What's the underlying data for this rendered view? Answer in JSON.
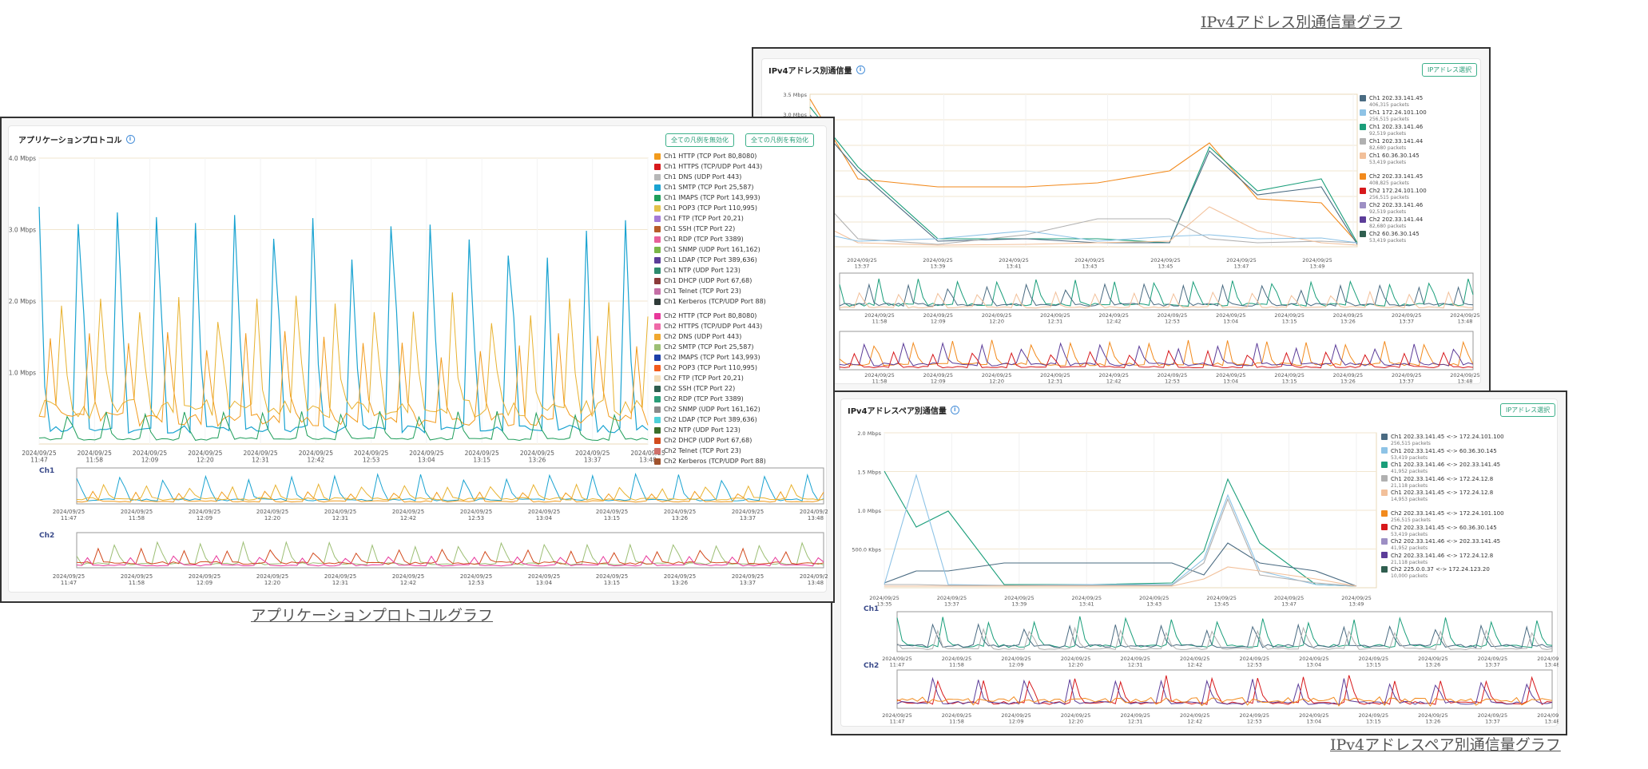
{
  "captions": {
    "app": "アプリケーションプロトコルグラフ",
    "ipv4": "IPv4アドレス別通信量グラフ",
    "pair": "IPv4アドレスペア別通信量グラフ"
  },
  "app_panel": {
    "title": "アプリケーションプロトコル",
    "btn_disable": "全ての凡例を無効化",
    "btn_enable": "全ての凡例を有効化",
    "y_ticks": [
      "4.0 Mbps",
      "3.0 Mbps",
      "2.0 Mbps",
      "1.0 Mbps"
    ],
    "x_dates": [
      "2024/09/25",
      "2024/09/25",
      "2024/09/25",
      "2024/09/25",
      "2024/09/25",
      "2024/09/25",
      "2024/09/25",
      "2024/09/25",
      "2024/09/25",
      "2024/09/25",
      "2024/09/25",
      "2024/09/25"
    ],
    "x_times": [
      "11:47",
      "11:58",
      "12:09",
      "12:20",
      "12:31",
      "12:42",
      "12:53",
      "13:04",
      "13:15",
      "13:26",
      "13:37",
      "13:48"
    ],
    "ch1_label": "Ch1",
    "ch2_label": "Ch2",
    "legend_ch1": [
      {
        "label": "Ch1 HTTP (TCP Port 80,8080)",
        "color": "#f29b1d"
      },
      {
        "label": "Ch1 HTTPS (TCP/UDP Port 443)",
        "color": "#d7191c"
      },
      {
        "label": "Ch1 DNS (UDP Port 443)",
        "color": "#b7b7b7"
      },
      {
        "label": "Ch1 SMTP (TCP Port 25,587)",
        "color": "#1aa3d1"
      },
      {
        "label": "Ch1 IMAPS (TCP Port 143,993)",
        "color": "#1f9e5a"
      },
      {
        "label": "Ch1 POP3 (TCP Port 110,995)",
        "color": "#e3c24a"
      },
      {
        "label": "Ch1 FTP (TCP Port 20,21)",
        "color": "#a47ad6"
      },
      {
        "label": "Ch1 SSH (TCP Port 22)",
        "color": "#b85c2a"
      },
      {
        "label": "Ch1 RDP (TCP Port 3389)",
        "color": "#e8609a"
      },
      {
        "label": "Ch1 SNMP (UDP Port 161,162)",
        "color": "#7ab648"
      },
      {
        "label": "Ch1 LDAP (TCP Port 389,636)",
        "color": "#5c3d99"
      },
      {
        "label": "Ch1 NTP (UDP Port 123)",
        "color": "#2e8b6e"
      },
      {
        "label": "Ch1 DHCP (UDP Port 67,68)",
        "color": "#8b3a3a"
      },
      {
        "label": "Ch1 Telnet (TCP Port 23)",
        "color": "#c56fa6"
      },
      {
        "label": "Ch1 Kerberos (TCP/UDP Port 88)",
        "color": "#2f3b38"
      }
    ],
    "legend_ch2": [
      {
        "label": "Ch2 HTTP (TCP Port 80,8080)",
        "color": "#e8389b"
      },
      {
        "label": "Ch2 HTTPS (TCP/UDP Port 443)",
        "color": "#ef6aa8"
      },
      {
        "label": "Ch2 DNS (UDP Port 443)",
        "color": "#f0a830"
      },
      {
        "label": "Ch2 SMTP (TCP Port 25,587)",
        "color": "#9dbf75"
      },
      {
        "label": "Ch2 IMAPS (TCP Port 143,993)",
        "color": "#1c3fa8"
      },
      {
        "label": "Ch2 POP3 (TCP Port 110,995)",
        "color": "#f25b1c"
      },
      {
        "label": "Ch2 FTP (TCP Port 20,21)",
        "color": "#f5ddb8"
      },
      {
        "label": "Ch2 SSH (TCP Port 22)",
        "color": "#2f5e4f"
      },
      {
        "label": "Ch2 RDP (TCP Port 3389)",
        "color": "#2a9d78"
      },
      {
        "label": "Ch2 SNMP (UDP Port 161,162)",
        "color": "#8a8a8a"
      },
      {
        "label": "Ch2 LDAP (TCP Port 389,636)",
        "color": "#4fd1d9"
      },
      {
        "label": "Ch2 NTP (UDP Port 123)",
        "color": "#3b6e2a"
      },
      {
        "label": "Ch2 DHCP (UDP Port 67,68)",
        "color": "#d24b1e"
      },
      {
        "label": "Ch2 Telnet (TCP Port 23)",
        "color": "#d0706a"
      },
      {
        "label": "Ch2 Kerberos (TCP/UDP Port 88)",
        "color": "#a0522d"
      }
    ]
  },
  "ipv4_panel": {
    "title": "IPv4アドレス別通信量",
    "btn_select": "IPアドレス選択",
    "y_ticks": [
      "3.5 Mbps",
      "3.0 Mbps"
    ],
    "x_dates": [
      "2024/09/25",
      "2024/09/25",
      "2024/09/25",
      "2024/09/25",
      "2024/09/25",
      "2024/09/25",
      "2024/09/25",
      "2024/09/25",
      "2024/09/25",
      "2024/09/25",
      "2024/09/25",
      "2024/09/25"
    ],
    "x_times": [
      "13:37",
      "13:39",
      "13:41",
      "13:43",
      "13:45",
      "13:47",
      "13:49"
    ],
    "ov_times": [
      "11:58",
      "12:09",
      "12:20",
      "12:31",
      "12:42",
      "12:53",
      "13:04",
      "13:15",
      "13:26",
      "13:37",
      "13:48"
    ],
    "legend": [
      {
        "label": "Ch1 202.33.141.45",
        "sub": "406,315 packets",
        "color": "#4a6b82"
      },
      {
        "label": "Ch1 172.24.101.100",
        "sub": "256,515 packets",
        "color": "#8ec3e6"
      },
      {
        "label": "Ch1 202.33.141.46",
        "sub": "92,519 packets",
        "color": "#1a9e7a"
      },
      {
        "label": "Ch1 202.33.141.44",
        "sub": "82,680 packets",
        "color": "#b0b0b0"
      },
      {
        "label": "Ch1 60.36.30.145",
        "sub": "53,419 packets",
        "color": "#f2c09a"
      },
      {
        "label": "Ch2 202.33.141.45",
        "sub": "408,825 packets",
        "color": "#f28a1d"
      },
      {
        "label": "Ch2 172.24.101.100",
        "sub": "256,515 packets",
        "color": "#d7191c"
      },
      {
        "label": "Ch2 202.33.141.46",
        "sub": "92,519 packets",
        "color": "#9d8fc4"
      },
      {
        "label": "Ch2 202.33.141.44",
        "sub": "82,680 packets",
        "color": "#5c3d99"
      },
      {
        "label": "Ch2 60.36.30.145",
        "sub": "53,419 packets",
        "color": "#2f5e4f"
      }
    ]
  },
  "pair_panel": {
    "title": "IPv4アドレスペア別通信量",
    "btn_select": "IPアドレス選択",
    "y_ticks": [
      "2.0 Mbps",
      "1.5 Mbps",
      "1.0 Mbps",
      "500.0 Kbps"
    ],
    "x_dates": [
      "2024/09/25",
      "2024/09/25",
      "2024/09/25",
      "2024/09/25",
      "2024/09/25",
      "2024/09/25",
      "2024/09/25",
      "2024/09/25",
      "2024/09/25",
      "2024/09/25",
      "2024/09/25",
      "2024/09/25"
    ],
    "x_times": [
      "13:35",
      "13:37",
      "13:39",
      "13:41",
      "13:43",
      "13:45",
      "13:47",
      "13:49"
    ],
    "ov_times": [
      "11:47",
      "11:58",
      "12:09",
      "12:20",
      "12:31",
      "12:42",
      "12:53",
      "13:04",
      "13:15",
      "13:26",
      "13:37",
      "13:48"
    ],
    "ch1_label": "Ch1",
    "ch2_label": "Ch2",
    "legend": [
      {
        "label": "Ch1 202.33.141.45 <-> 172.24.101.100",
        "sub": "256,515 packets",
        "color": "#4a6b82"
      },
      {
        "label": "Ch1 202.33.141.45 <-> 60.36.30.145",
        "sub": "53,419 packets",
        "color": "#8ec3e6"
      },
      {
        "label": "Ch1 202.33.141.46 <-> 202.33.141.45",
        "sub": "41,952 packets",
        "color": "#1a9e7a"
      },
      {
        "label": "Ch1 202.33.141.46 <-> 172.24.12.8",
        "sub": "21,118 packets",
        "color": "#b0b0b0"
      },
      {
        "label": "Ch1 202.33.141.45 <-> 172.24.12.8",
        "sub": "14,953 packets",
        "color": "#f2c09a"
      },
      {
        "label": "Ch2 202.33.141.45 <-> 172.24.101.100",
        "sub": "256,515 packets",
        "color": "#f28a1d"
      },
      {
        "label": "Ch2 202.33.141.45 <-> 60.36.30.145",
        "sub": "53,419 packets",
        "color": "#d7191c"
      },
      {
        "label": "Ch2 202.33.141.46 <-> 202.33.141.45",
        "sub": "41,952 packets",
        "color": "#9d8fc4"
      },
      {
        "label": "Ch2 202.33.141.46 <-> 172.24.12.8",
        "sub": "21,118 packets",
        "color": "#5c3d99"
      },
      {
        "label": "Ch2 225.0.0.37 <-> 172.24.123.20",
        "sub": "10,000 packets",
        "color": "#2f5e4f"
      }
    ]
  }
}
